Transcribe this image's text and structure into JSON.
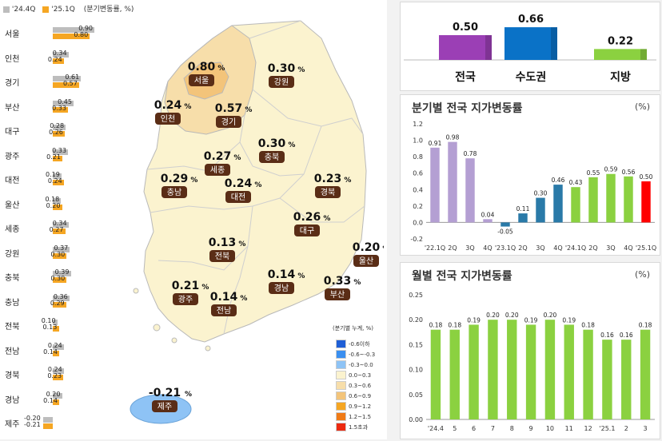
{
  "legend_top": {
    "s1": "'24.4Q",
    "s2": "'25.1Q",
    "unit": "(분기변동률, %)",
    "c1": "#bdbdbd",
    "c2": "#f5a623"
  },
  "left_bars": [
    {
      "region": "서울",
      "q4": "0.90",
      "q1": "0.80",
      "v4": 0.9,
      "v1": 0.8
    },
    {
      "region": "인천",
      "q4": "0.34",
      "q1": "0.24",
      "v4": 0.34,
      "v1": 0.24
    },
    {
      "region": "경기",
      "q4": "0.61",
      "q1": "0.57",
      "v4": 0.61,
      "v1": 0.57
    },
    {
      "region": "부산",
      "q4": "0.45",
      "q1": "0.33",
      "v4": 0.45,
      "v1": 0.33
    },
    {
      "region": "대구",
      "q4": "0.28",
      "q1": "0.26",
      "v4": 0.28,
      "v1": 0.26
    },
    {
      "region": "광주",
      "q4": "0.33",
      "q1": "0.21",
      "v4": 0.33,
      "v1": 0.21
    },
    {
      "region": "대전",
      "q4": "0.19",
      "q1": "0.24",
      "v4": 0.19,
      "v1": 0.24
    },
    {
      "region": "울산",
      "q4": "0.18",
      "q1": "0.20",
      "v4": 0.18,
      "v1": 0.2
    },
    {
      "region": "세종",
      "q4": "0.34",
      "q1": "0.27",
      "v4": 0.34,
      "v1": 0.27
    },
    {
      "region": "강원",
      "q4": "0.37",
      "q1": "0.30",
      "v4": 0.37,
      "v1": 0.3
    },
    {
      "region": "충북",
      "q4": "0.39",
      "q1": "0.30",
      "v4": 0.39,
      "v1": 0.3
    },
    {
      "region": "충남",
      "q4": "0.36",
      "q1": "0.29",
      "v4": 0.36,
      "v1": 0.29
    },
    {
      "region": "전북",
      "q4": "0.10",
      "q1": "0.13",
      "v4": 0.1,
      "v1": 0.13
    },
    {
      "region": "전남",
      "q4": "0.24",
      "q1": "0.14",
      "v4": 0.24,
      "v1": 0.14
    },
    {
      "region": "경북",
      "q4": "0.24",
      "q1": "0.23",
      "v4": 0.24,
      "v1": 0.23
    },
    {
      "region": "경남",
      "q4": "0.20",
      "q1": "0.14",
      "v4": 0.2,
      "v1": 0.14
    },
    {
      "region": "제주",
      "q4": "-0.20",
      "q1": "-0.21",
      "v4": -0.2,
      "v1": -0.21
    }
  ],
  "map_labels": [
    {
      "region": "서울",
      "value": "0.80",
      "pct": "%"
    },
    {
      "region": "강원",
      "value": "0.30",
      "pct": "%"
    },
    {
      "region": "인천",
      "value": "0.24",
      "pct": "%"
    },
    {
      "region": "경기",
      "value": "0.57",
      "pct": "%"
    },
    {
      "region": "충북",
      "value": "0.30",
      "pct": "%"
    },
    {
      "region": "세종",
      "value": "0.27",
      "pct": "%"
    },
    {
      "region": "충남",
      "value": "0.29",
      "pct": "%"
    },
    {
      "region": "대전",
      "value": "0.24",
      "pct": "%"
    },
    {
      "region": "경북",
      "value": "0.23",
      "pct": "%"
    },
    {
      "region": "대구",
      "value": "0.26",
      "pct": "%"
    },
    {
      "region": "울산",
      "value": "0.20",
      "pct": "%"
    },
    {
      "region": "전북",
      "value": "0.13",
      "pct": "%"
    },
    {
      "region": "경남",
      "value": "0.14",
      "pct": "%"
    },
    {
      "region": "부산",
      "value": "0.33",
      "pct": "%"
    },
    {
      "region": "광주",
      "value": "0.21",
      "pct": "%"
    },
    {
      "region": "전남",
      "value": "0.14",
      "pct": "%"
    },
    {
      "region": "제주",
      "value": "-0.21",
      "pct": "%"
    }
  ],
  "map_legend": {
    "title": "(분기별 누계, %)",
    "items": [
      {
        "label": "-0.6이하",
        "color": "#1f5fd6"
      },
      {
        "label": "-0.6~-0.3",
        "color": "#3a8ff0"
      },
      {
        "label": "-0.3~0.0",
        "color": "#8ec3f5"
      },
      {
        "label": "0.0~0.3",
        "color": "#fbf3cf"
      },
      {
        "label": "0.3~0.6",
        "color": "#f7deaa"
      },
      {
        "label": "0.6~0.9",
        "color": "#f3c47a"
      },
      {
        "label": "0.9~1.2",
        "color": "#f5a623"
      },
      {
        "label": "1.2~1.5",
        "color": "#f07b17"
      },
      {
        "label": "1.5초과",
        "color": "#ec2a10"
      }
    ]
  },
  "summary": {
    "items": [
      {
        "label": "전국",
        "value": "0.50",
        "v": 0.5,
        "color": "#9b3fb5"
      },
      {
        "label": "수도권",
        "value": "0.66",
        "v": 0.66,
        "color": "#0a72c7"
      },
      {
        "label": "지방",
        "value": "0.22",
        "v": 0.22,
        "color": "#8bd140"
      }
    ]
  },
  "quarterly": {
    "title": "분기별 전국 지가변동률",
    "unit": "(%)",
    "chart_data": {
      "type": "bar",
      "ylim": [
        -0.2,
        1.2
      ],
      "yticks": [
        "1.2",
        "1.0",
        "0.8",
        "0.6",
        "0.4",
        "0.2",
        "0.0",
        "-0.2"
      ],
      "ytick_values": [
        1.2,
        1.0,
        0.8,
        0.6,
        0.4,
        0.2,
        0.0,
        -0.2
      ],
      "categories": [
        "'22.1Q",
        "2Q",
        "3Q",
        "4Q",
        "'23.1Q",
        "2Q",
        "3Q",
        "4Q",
        "'24.1Q",
        "2Q",
        "3Q",
        "4Q",
        "'25.1Q"
      ],
      "values": [
        0.91,
        0.98,
        0.78,
        0.04,
        -0.05,
        0.11,
        0.3,
        0.46,
        0.43,
        0.55,
        0.59,
        0.56,
        0.5
      ],
      "labels": [
        "0.91",
        "0.98",
        "0.78",
        "0.04",
        "-0.05",
        "0.11",
        "0.30",
        "0.46",
        "0.43",
        "0.55",
        "0.59",
        "0.56",
        "0.50"
      ],
      "colors": [
        "#b49fd3",
        "#b49fd3",
        "#b49fd3",
        "#b49fd3",
        "#2a7aa8",
        "#2a7aa8",
        "#2a7aa8",
        "#2a7aa8",
        "#8bd140",
        "#8bd140",
        "#8bd140",
        "#8bd140",
        "#ff0000"
      ]
    }
  },
  "monthly": {
    "title": "월별 전국 지가변동률",
    "unit": "(%)",
    "chart_data": {
      "type": "bar",
      "ylim": [
        0,
        0.25
      ],
      "yticks": [
        "0.25",
        "0.20",
        "0.15",
        "0.10",
        "0.05",
        "0.00"
      ],
      "ytick_values": [
        0.25,
        0.2,
        0.15,
        0.1,
        0.05,
        0.0
      ],
      "categories": [
        "'24.4",
        "5",
        "6",
        "7",
        "8",
        "9",
        "10",
        "11",
        "12",
        "'25.1",
        "2",
        "3"
      ],
      "values": [
        0.18,
        0.18,
        0.19,
        0.2,
        0.2,
        0.19,
        0.2,
        0.19,
        0.18,
        0.16,
        0.16,
        0.18
      ],
      "labels": [
        "0.18",
        "0.18",
        "0.19",
        "0.20",
        "0.20",
        "0.19",
        "0.20",
        "0.19",
        "0.18",
        "0.16",
        "0.16",
        "0.18"
      ],
      "color": "#8bd140"
    }
  }
}
